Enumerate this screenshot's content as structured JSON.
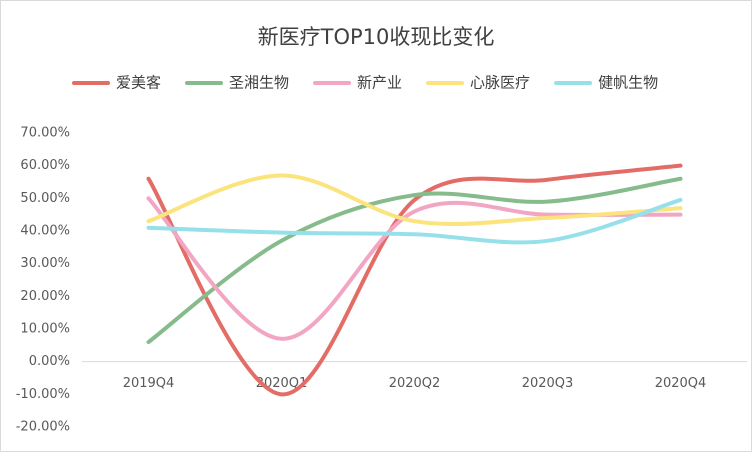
{
  "chart_data": {
    "type": "line",
    "title": "新医疗TOP10收现比变化",
    "categories": [
      "2019Q4",
      "2020Q1",
      "2020Q2",
      "2020Q3",
      "2020Q4"
    ],
    "series": [
      {
        "name": "爱美客",
        "color": "#e36c66",
        "values": [
          56,
          -10,
          49.5,
          55.7,
          60
        ]
      },
      {
        "name": "圣湘生物",
        "color": "#86bb8b",
        "values": [
          6,
          37,
          51,
          49,
          56
        ]
      },
      {
        "name": "新产业",
        "color": "#f2a6c4",
        "values": [
          50,
          7,
          46,
          45,
          45
        ]
      },
      {
        "name": "心脉医疗",
        "color": "#fbe37d",
        "values": [
          43,
          57,
          43,
          44,
          47
        ]
      },
      {
        "name": "健帆生物",
        "color": "#96e0ea",
        "values": [
          41,
          39.5,
          39,
          37,
          49.5
        ]
      }
    ],
    "ylim": [
      -20,
      70
    ],
    "yticks": [
      {
        "value": -20,
        "label": "-20.00%"
      },
      {
        "value": -10,
        "label": "-10.00%"
      },
      {
        "value": 0,
        "label": "0.00%"
      },
      {
        "value": 10,
        "label": "10.00%"
      },
      {
        "value": 20,
        "label": "20.00%"
      },
      {
        "value": 30,
        "label": "30.00%"
      },
      {
        "value": 40,
        "label": "40.00%"
      },
      {
        "value": 50,
        "label": "50.00%"
      },
      {
        "value": 60,
        "label": "60.00%"
      },
      {
        "value": 70,
        "label": "70.00%"
      }
    ],
    "legend": "top",
    "smooth": true
  }
}
